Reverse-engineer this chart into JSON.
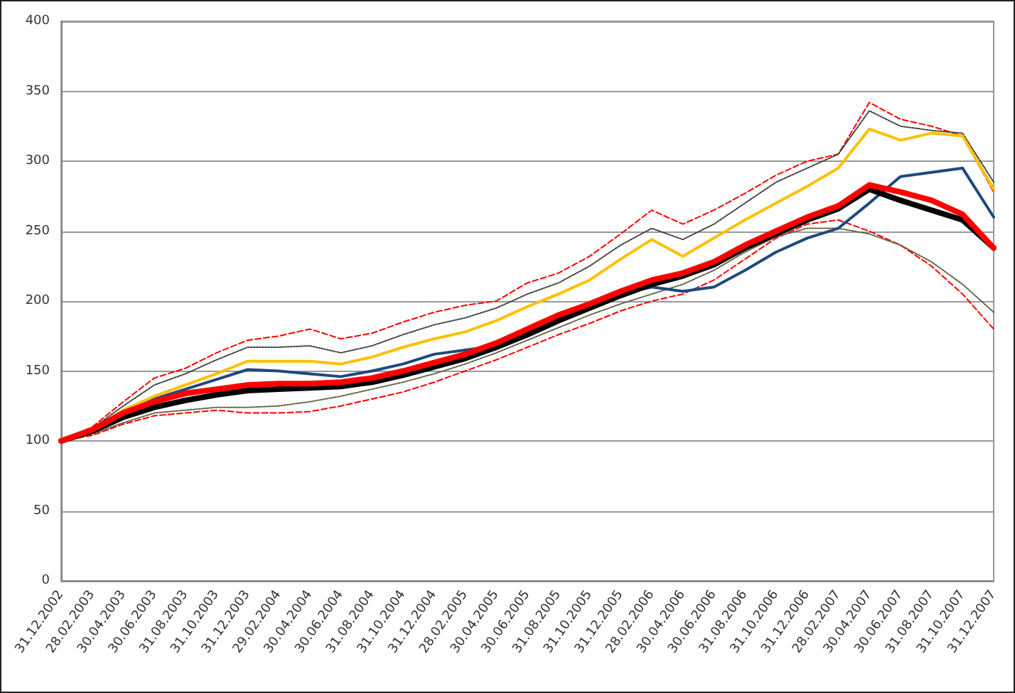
{
  "chart_data": {
    "type": "line",
    "categories": [
      "31.12.2002",
      "28.02.2003",
      "30.04.2003",
      "30.06.2003",
      "31.08.2003",
      "31.10.2003",
      "31.12.2003",
      "29.02.2004",
      "30.04.2004",
      "30.06.2004",
      "31.08.2004",
      "31.10.2004",
      "31.12.2004",
      "28.02.2005",
      "30.04.2005",
      "30.06.2005",
      "31.08.2005",
      "31.10.2005",
      "31.12.2005",
      "28.02.2006",
      "30.04.2006",
      "30.06.2006",
      "31.08.2006",
      "31.10.2006",
      "31.12.2006",
      "28.02.2007",
      "30.04.2007",
      "30.06.2007",
      "31.08.2007",
      "31.10.2007",
      "31.12.2007"
    ],
    "series": [
      {
        "color": "#ff0000",
        "line_style": "dashed",
        "values": [
          100,
          110,
          128,
          145,
          152,
          163,
          172,
          175,
          180,
          173,
          177,
          185,
          192,
          197,
          200,
          213,
          220,
          232,
          248,
          265,
          255,
          265,
          277,
          290,
          300,
          305,
          342,
          330,
          325,
          318,
          278
        ]
      },
      {
        "color": "#ff0000",
        "line_style": "dashed",
        "values": [
          100,
          104,
          112,
          118,
          120,
          122,
          120,
          120,
          121,
          125,
          130,
          135,
          142,
          150,
          158,
          167,
          176,
          184,
          193,
          200,
          205,
          215,
          230,
          245,
          255,
          258,
          250,
          240,
          225,
          205,
          180
        ]
      },
      {
        "color": "#404040",
        "line_style": "dotted",
        "values": [
          100,
          109,
          125,
          140,
          148,
          158,
          167,
          167,
          168,
          163,
          168,
          176,
          183,
          188,
          195,
          205,
          213,
          225,
          240,
          252,
          244,
          255,
          270,
          285,
          295,
          305,
          336,
          325,
          322,
          320,
          285
        ]
      },
      {
        "color": "#606040",
        "line_style": "dotted",
        "values": [
          100,
          105,
          113,
          120,
          122,
          124,
          124,
          125,
          128,
          132,
          137,
          142,
          148,
          155,
          163,
          172,
          181,
          190,
          198,
          205,
          212,
          222,
          235,
          246,
          252,
          252,
          248,
          240,
          228,
          212,
          192
        ]
      },
      {
        "color": "#1f497d",
        "line_style": "solid",
        "values": [
          100,
          108,
          120,
          130,
          137,
          144,
          151,
          150,
          148,
          146,
          150,
          155,
          162,
          165,
          168,
          178,
          188,
          196,
          205,
          210,
          207,
          210,
          222,
          235,
          245,
          252,
          270,
          289,
          292,
          295,
          260
        ]
      },
      {
        "color": "#ffc000",
        "line_style": "solid",
        "values": [
          100,
          108,
          122,
          132,
          140,
          148,
          157,
          157,
          157,
          155,
          160,
          167,
          173,
          178,
          186,
          196,
          205,
          215,
          230,
          244,
          232,
          245,
          258,
          270,
          282,
          295,
          323,
          315,
          320,
          318,
          280
        ]
      },
      {
        "color": "#000000",
        "line_style": "solid",
        "values": [
          100,
          107,
          117,
          124,
          129,
          133,
          136,
          137,
          138,
          139,
          142,
          147,
          153,
          159,
          167,
          176,
          186,
          195,
          204,
          212,
          218,
          226,
          238,
          248,
          258,
          266,
          280,
          272,
          265,
          258,
          238
        ]
      },
      {
        "color": "#ff0000",
        "line_style": "solid",
        "values": [
          100,
          108,
          120,
          128,
          134,
          137,
          140,
          141,
          141,
          142,
          145,
          150,
          156,
          162,
          170,
          180,
          190,
          198,
          207,
          215,
          220,
          228,
          240,
          250,
          260,
          268,
          283,
          278,
          272,
          262,
          238
        ]
      }
    ],
    "ylim": [
      0,
      400
    ],
    "yticks": [
      0,
      50,
      100,
      150,
      200,
      250,
      300,
      350,
      400
    ],
    "grid": "y",
    "marker": "none"
  }
}
